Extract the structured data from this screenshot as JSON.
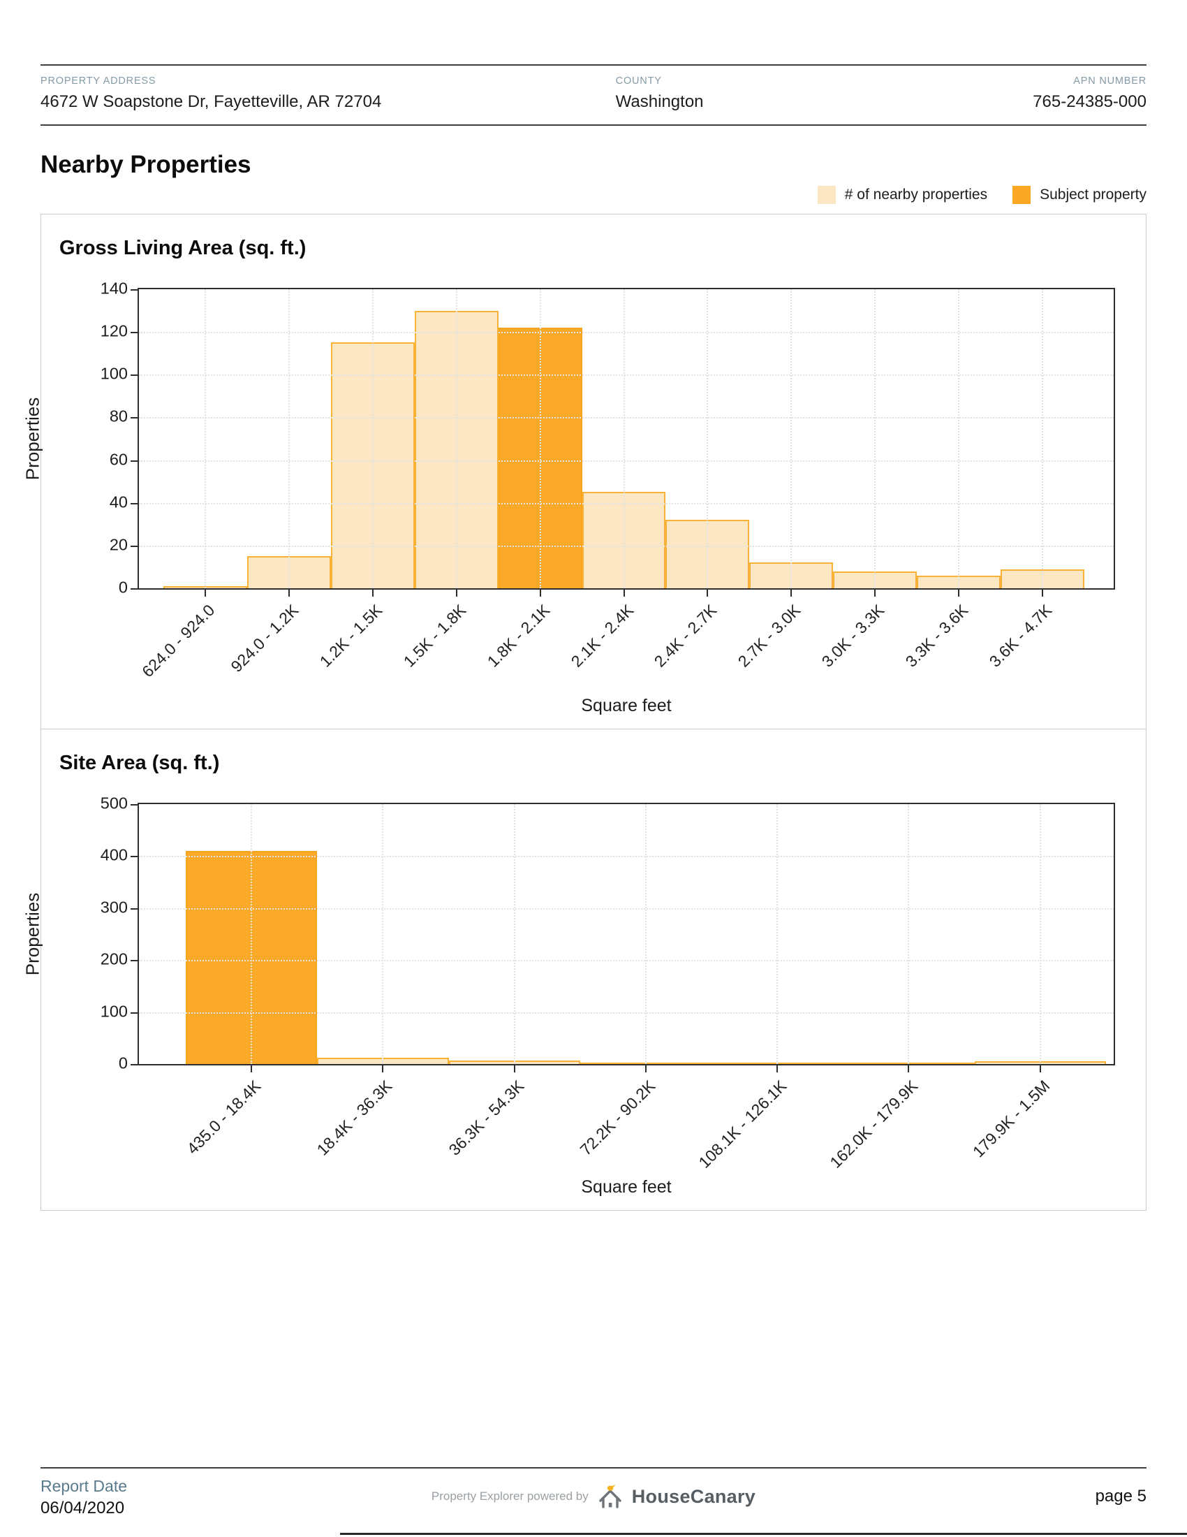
{
  "header": {
    "property_address_label": "PROPERTY ADDRESS",
    "property_address": "4672 W Soapstone Dr, Fayetteville, AR 72704",
    "county_label": "COUNTY",
    "county": "Washington",
    "apn_label": "APN NUMBER",
    "apn": "765-24385-000"
  },
  "page": {
    "title": "Nearby Properties"
  },
  "legend": {
    "nearby_label": "# of nearby properties",
    "nearby_color": "#fbe7c4",
    "subject_label": "Subject property",
    "subject_color": "#faa724"
  },
  "chart_data": [
    {
      "type": "bar",
      "title": "Gross Living Area (sq. ft.)",
      "xlabel": "Square feet",
      "ylabel": "Properties",
      "ylim": [
        0,
        140
      ],
      "yticks": [
        0,
        20,
        40,
        60,
        80,
        100,
        120,
        140
      ],
      "grid": true,
      "categories": [
        "624.0 - 924.0",
        "924.0 - 1.2K",
        "1.2K - 1.5K",
        "1.5K - 1.8K",
        "1.8K - 2.1K",
        "2.1K - 2.4K",
        "2.4K - 2.7K",
        "2.7K - 3.0K",
        "3.0K - 3.3K",
        "3.3K - 3.6K",
        "3.6K - 4.7K"
      ],
      "values": [
        1,
        15,
        115,
        130,
        122,
        45,
        32,
        12,
        8,
        6,
        9
      ],
      "subject_index": 4,
      "subject_category": "1.8K - 2.1K",
      "colors": {
        "bar_fill": "#fbe7c4",
        "bar_edge": "#f9b236",
        "subject_fill": "#faaa28",
        "subject_edge": "#f6a41d"
      },
      "layout": {
        "lead_pct": 2.5,
        "trail_pct": 3
      }
    },
    {
      "type": "bar",
      "title": "Site Area (sq. ft.)",
      "xlabel": "Square feet",
      "ylabel": "Properties",
      "ylim": [
        0,
        500
      ],
      "yticks": [
        0,
        100,
        200,
        300,
        400,
        500
      ],
      "grid": true,
      "categories": [
        "435.0 - 18.4K",
        "18.4K - 36.3K",
        "36.3K - 54.3K",
        "72.2K - 90.2K",
        "108.1K - 126.1K",
        "162.0K - 179.9K",
        "179.9K - 1.5M"
      ],
      "values": [
        410,
        12,
        7,
        3,
        2,
        2,
        5
      ],
      "subject_index": 0,
      "subject_category": "435.0 - 18.4K",
      "colors": {
        "bar_fill": "#fbe7c4",
        "bar_edge": "#f9b236",
        "subject_fill": "#faaa28",
        "subject_edge": "#f6a41d"
      },
      "layout": {
        "lead_pct": 4.8,
        "trail_pct": 0.8
      }
    }
  ],
  "footer": {
    "report_date_label": "Report Date",
    "report_date": "06/04/2020",
    "powered_by": "Property Explorer powered by",
    "brand": "HouseCanary",
    "page_number": "page 5"
  }
}
